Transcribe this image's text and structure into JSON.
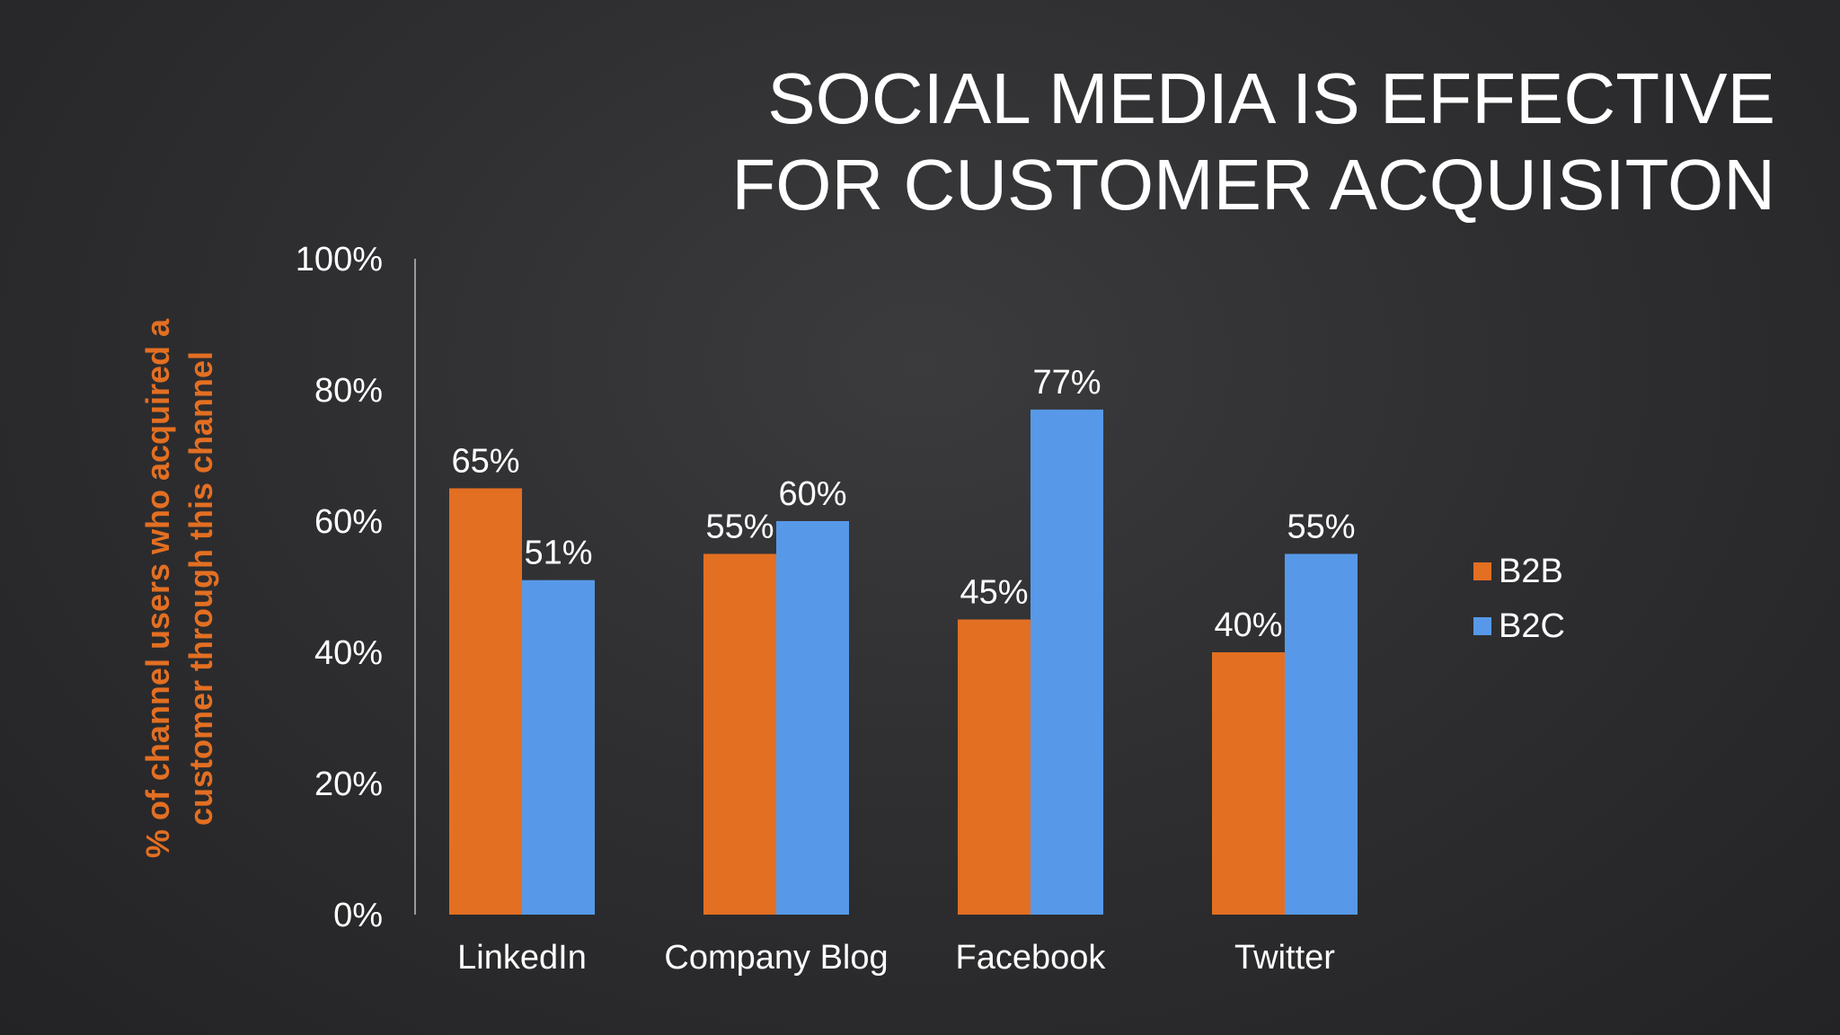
{
  "title_lines": [
    "SOCIAL MEDIA IS EFFECTIVE",
    "FOR CUSTOMER ACQUISITON"
  ],
  "colors": {
    "b2b": "#E36F22",
    "b2c": "#5799E8",
    "ylabel": "#E36F22",
    "text": "#FFFFFF",
    "axis": "#9A9A9A"
  },
  "chart_data": {
    "type": "bar",
    "title": "SOCIAL MEDIA IS EFFECTIVE FOR CUSTOMER ACQUISITON",
    "categories": [
      "LinkedIn",
      "Company Blog",
      "Facebook",
      "Twitter"
    ],
    "series": [
      {
        "name": "B2B",
        "values": [
          65,
          55,
          45,
          40
        ],
        "labels": [
          "65%",
          "55%",
          "45%",
          "40%"
        ]
      },
      {
        "name": "B2C",
        "values": [
          51,
          60,
          77,
          55
        ],
        "labels": [
          "51%",
          "60%",
          "77%",
          "55%"
        ]
      }
    ],
    "ylabel_lines": [
      "% of channel users who acquired a",
      "customer through this channel"
    ],
    "yticks": [
      0,
      20,
      40,
      60,
      80,
      100
    ],
    "ytick_labels": [
      "0%",
      "20%",
      "40%",
      "60%",
      "80%",
      "100%"
    ],
    "ylim": [
      0,
      100
    ],
    "grid": false,
    "legend_position": "right"
  }
}
